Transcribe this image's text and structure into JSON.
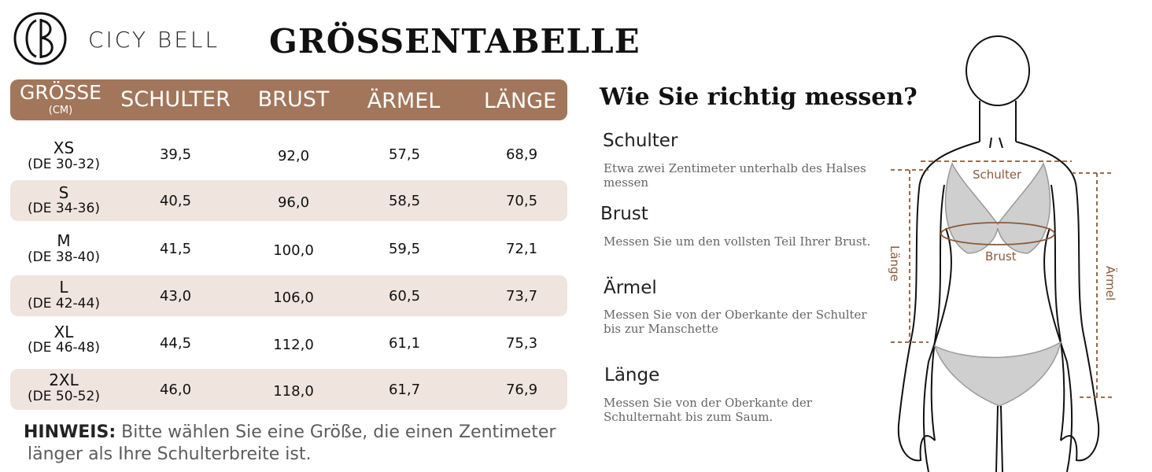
{
  "brand": {
    "name": "CICY BELL"
  },
  "title": "GRÖSSENTABELLE",
  "table": {
    "headers": {
      "size": "GRÖSSE",
      "size_unit": "(CM)",
      "shoulder": "SCHULTER",
      "bust": "BRUST",
      "sleeve": "ÄRMEL",
      "length": "LÄNGE"
    },
    "rows": [
      {
        "size": "XS",
        "de": "(DE 30-32)",
        "shoulder": "39,5",
        "bust": "92,0",
        "sleeve": "57,5",
        "length": "68,9"
      },
      {
        "size": "S",
        "de": "(DE 34-36)",
        "shoulder": "40,5",
        "bust": "96,0",
        "sleeve": "58,5",
        "length": "70,5"
      },
      {
        "size": "M",
        "de": "(DE 38-40)",
        "shoulder": "41,5",
        "bust": "100,0",
        "sleeve": "59,5",
        "length": "72,1"
      },
      {
        "size": "L",
        "de": "(DE 42-44)",
        "shoulder": "43,0",
        "bust": "106,0",
        "sleeve": "60,5",
        "length": "73,7"
      },
      {
        "size": "XL",
        "de": "(DE 46-48)",
        "shoulder": "44,5",
        "bust": "112,0",
        "sleeve": "61,1",
        "length": "75,3"
      },
      {
        "size": "2XL",
        "de": "(DE 50-52)",
        "shoulder": "46,0",
        "bust": "118,0",
        "sleeve": "61,7",
        "length": "76,9"
      }
    ]
  },
  "note": {
    "label": "HINWEIS:",
    "line1": " Bitte wählen Sie eine Größe, die einen Zentimeter",
    "line2": "länger als Ihre Schulterbreite ist."
  },
  "guide": {
    "heading": "Wie Sie richtig messen?",
    "items": [
      {
        "title": "Schulter",
        "desc": "Etwa zwei Zentimeter unterhalb des Halses messen"
      },
      {
        "title": "Brust",
        "desc": "Messen Sie um den vollsten Teil Ihrer Brust."
      },
      {
        "title": "Ärmel",
        "desc": "Messen Sie von der Oberkante der Schulter bis zur Manschette"
      },
      {
        "title": "Länge",
        "desc": "Messen Sie von der Oberkante der Schulternaht bis zum Saum."
      }
    ]
  },
  "figure_labels": {
    "shoulder": "Schulter",
    "bust": "Brust",
    "length": "Länge",
    "sleeve": "Ärmel"
  },
  "colors": {
    "header_bg": "#a2765a",
    "row_shade": "#efe4de",
    "accent": "#8a5a3a"
  }
}
